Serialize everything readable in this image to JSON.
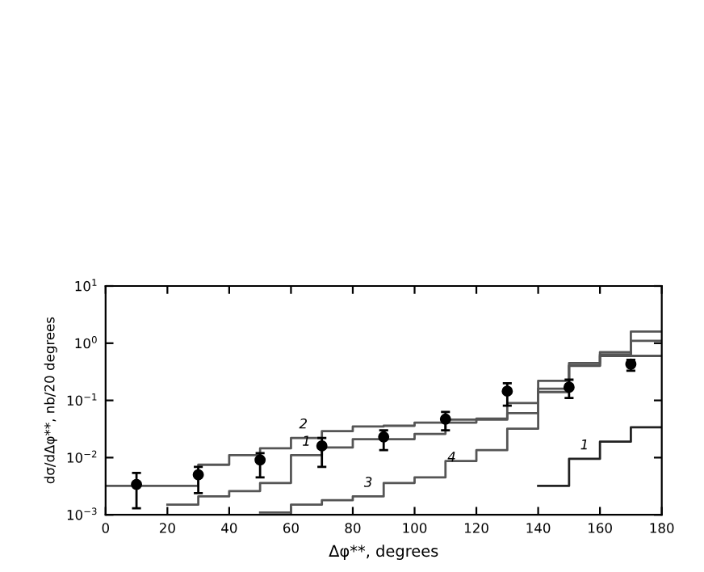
{
  "chart_data": {
    "type": "step",
    "xlabel": "Δφ**, degrees",
    "ylabel": "dσ/dΔφ**, nb/20 degrees",
    "log": "y",
    "xlim": [
      0,
      180
    ],
    "xticks": [
      0,
      20,
      40,
      60,
      80,
      100,
      120,
      140,
      160,
      180
    ],
    "ylim": [
      0.001,
      10
    ],
    "yticks": [
      {
        "value": 0.001,
        "label": "10$^{−3}$"
      },
      {
        "value": 0.01,
        "label": "10$^{−2}$"
      },
      {
        "value": 0.1,
        "label": "10$^{−1}$"
      },
      {
        "value": 1,
        "label": "10$^{0}$"
      },
      {
        "value": 10,
        "label": "10$^{1}$"
      }
    ],
    "grid": false,
    "series": [
      {
        "color": "#555555",
        "x": [
          0,
          10,
          20,
          30,
          40,
          50,
          60,
          70,
          80,
          90,
          100,
          110,
          120,
          130,
          140,
          150,
          160,
          170,
          180
        ],
        "values": [
          0.0032,
          0.0032,
          0.0032,
          0.0075,
          0.011,
          0.0145,
          0.022,
          0.029,
          0.035,
          0.036,
          0.041,
          0.046,
          0.048,
          0.06,
          0.22,
          0.4,
          0.6,
          1.6,
          1.6
        ]
      },
      {
        "color": "#555555",
        "x": [
          20,
          30,
          40,
          50,
          60,
          70,
          80,
          90,
          100,
          110,
          120,
          130,
          140,
          150,
          160,
          170,
          180
        ],
        "values": [
          0.0015,
          0.0021,
          0.0026,
          0.0036,
          0.011,
          0.015,
          0.021,
          0.021,
          0.026,
          0.041,
          0.046,
          0.09,
          0.16,
          0.45,
          0.7,
          0.6,
          0.6
        ]
      },
      {
        "color": "#555555",
        "x": [
          50,
          60,
          70,
          80,
          90,
          100,
          110,
          120,
          130,
          140,
          150,
          160,
          170,
          180
        ],
        "values": [
          0.0011,
          0.0015,
          0.0018,
          0.0021,
          0.0036,
          0.0045,
          0.0087,
          0.0135,
          0.032,
          0.14,
          0.41,
          0.64,
          1.1,
          1.1
        ]
      },
      {
        "color": "#222222",
        "x": [
          140,
          150,
          160,
          170,
          180
        ],
        "values": [
          0.0032,
          0.0095,
          0.019,
          0.034,
          0.034
        ]
      },
      {
        "type": "scatter",
        "marker": "circle",
        "color": "#000000",
        "x": [
          10,
          30,
          50,
          70,
          90,
          110,
          130,
          150,
          170
        ],
        "values": [
          0.0034,
          0.005,
          0.0091,
          0.016,
          0.023,
          0.047,
          0.145,
          0.17,
          0.43
        ],
        "errors": [
          [
            0.0013,
            0.0054
          ],
          [
            0.0024,
            0.0069
          ],
          [
            0.0045,
            0.012
          ],
          [
            0.0069,
            0.022
          ],
          [
            0.0135,
            0.03
          ],
          [
            0.03,
            0.063
          ],
          [
            0.081,
            0.2
          ],
          [
            0.11,
            0.23
          ],
          [
            0.33,
            0.51
          ]
        ]
      }
    ],
    "annotations": [
      {
        "text": "2",
        "x": 64,
        "y": 0.022
      },
      {
        "text": "1",
        "x": 65,
        "y": 0.011
      },
      {
        "text": "3",
        "x": 85,
        "y": 0.0021
      },
      {
        "text": "4",
        "x": 112,
        "y": 0.0058
      },
      {
        "text": "1",
        "x": 155,
        "y": 0.0095
      }
    ]
  }
}
